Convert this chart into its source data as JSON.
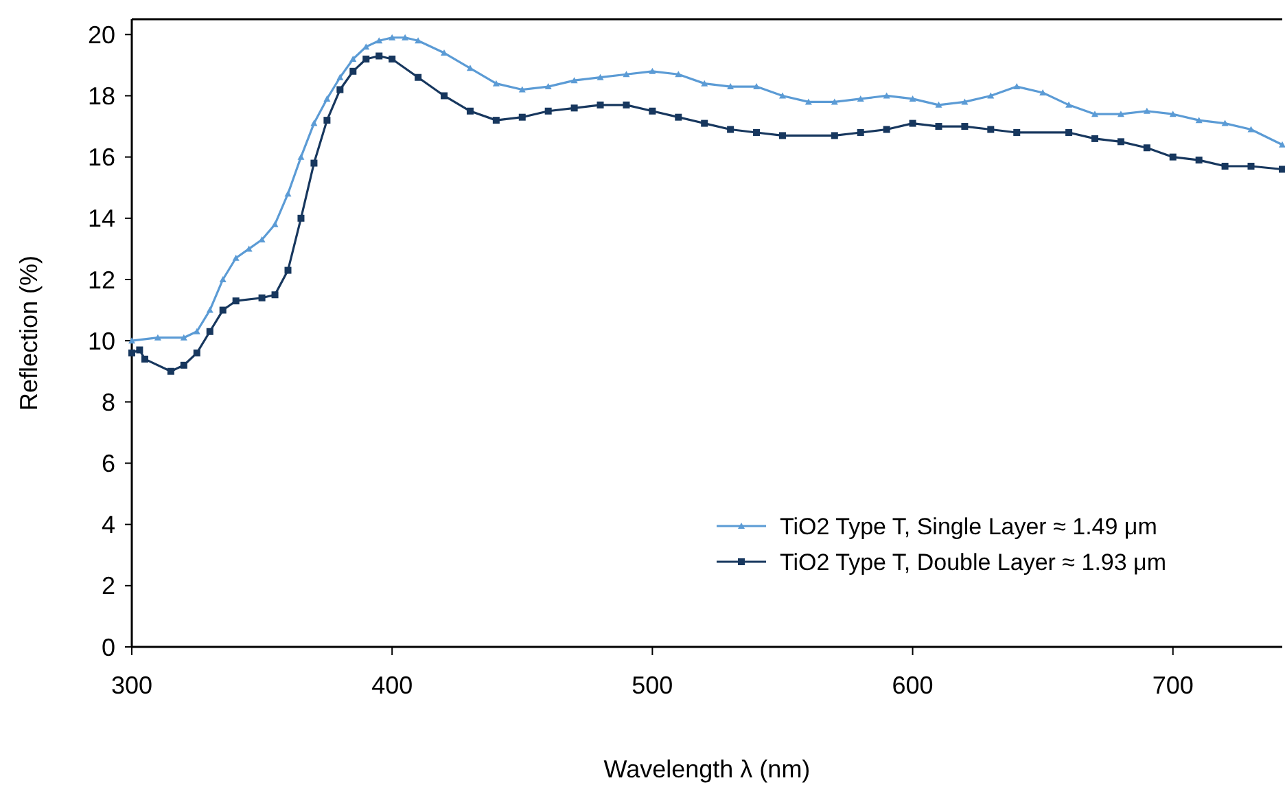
{
  "chart_data": {
    "type": "line",
    "xlabel": "Wavelength λ (nm)",
    "ylabel": "Reflection (%)",
    "xlim": [
      300,
      742
    ],
    "xticks": [
      300,
      400,
      500,
      600,
      700
    ],
    "ylim": [
      0,
      20.5
    ],
    "yticks": [
      0,
      2,
      4,
      6,
      8,
      10,
      12,
      14,
      16,
      18,
      20
    ],
    "grid": false,
    "legend": "bottom right",
    "line_style": "solid",
    "series": [
      {
        "name": "TiO2 Type T, Single Layer ≈ 1.49 μm",
        "color": "#5b9bd5",
        "marker": "triangle",
        "x": [
          300,
          310,
          320,
          325,
          330,
          335,
          340,
          345,
          350,
          355,
          360,
          365,
          370,
          375,
          380,
          385,
          390,
          395,
          400,
          405,
          410,
          420,
          430,
          440,
          450,
          460,
          470,
          480,
          490,
          500,
          510,
          520,
          530,
          540,
          550,
          560,
          570,
          580,
          590,
          600,
          610,
          620,
          630,
          640,
          650,
          660,
          670,
          680,
          690,
          700,
          710,
          720,
          730,
          742
        ],
        "values": [
          10.0,
          10.1,
          10.1,
          10.3,
          11.0,
          12.0,
          12.7,
          13.0,
          13.3,
          13.8,
          14.8,
          16.0,
          17.1,
          17.9,
          18.6,
          19.2,
          19.6,
          19.8,
          19.9,
          19.9,
          19.8,
          19.4,
          18.9,
          18.4,
          18.2,
          18.3,
          18.5,
          18.6,
          18.7,
          18.8,
          18.7,
          18.4,
          18.3,
          18.3,
          18.0,
          17.8,
          17.8,
          17.9,
          18.0,
          17.9,
          17.7,
          17.8,
          18.0,
          18.3,
          18.1,
          17.7,
          17.4,
          17.4,
          17.5,
          17.4,
          17.2,
          17.1,
          16.9,
          16.4
        ]
      },
      {
        "name": "TiO2 Type T, Double Layer ≈ 1.93 μm",
        "color": "#17375e",
        "marker": "square",
        "x": [
          300,
          303,
          305,
          315,
          320,
          325,
          330,
          335,
          340,
          350,
          355,
          360,
          365,
          370,
          375,
          380,
          385,
          390,
          395,
          400,
          410,
          420,
          430,
          440,
          450,
          460,
          470,
          480,
          490,
          500,
          510,
          520,
          530,
          540,
          550,
          570,
          580,
          590,
          600,
          610,
          620,
          630,
          640,
          660,
          670,
          680,
          690,
          700,
          710,
          720,
          730,
          742
        ],
        "values": [
          9.6,
          9.7,
          9.4,
          9.0,
          9.2,
          9.6,
          10.3,
          11.0,
          11.3,
          11.4,
          11.5,
          12.3,
          14.0,
          15.8,
          17.2,
          18.2,
          18.8,
          19.2,
          19.3,
          19.2,
          18.6,
          18.0,
          17.5,
          17.2,
          17.3,
          17.5,
          17.6,
          17.7,
          17.7,
          17.5,
          17.3,
          17.1,
          16.9,
          16.8,
          16.7,
          16.7,
          16.8,
          16.9,
          17.1,
          17.0,
          17.0,
          16.9,
          16.8,
          16.8,
          16.6,
          16.5,
          16.3,
          16.0,
          15.9,
          15.7,
          15.7,
          15.6
        ]
      }
    ]
  }
}
